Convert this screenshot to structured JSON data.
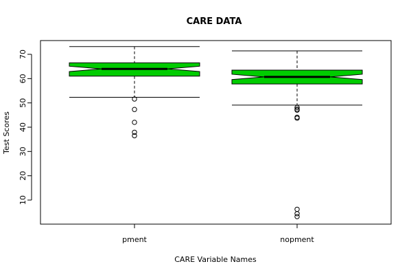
{
  "chart_data": {
    "type": "boxplot",
    "title": "CARE DATA",
    "xlabel": "CARE Variable Names",
    "ylabel": "Test Scores",
    "ylim": [
      0,
      75
    ],
    "yticks": [
      10,
      20,
      30,
      40,
      50,
      60,
      70
    ],
    "notched": true,
    "box_color": "#00cc00",
    "categories": [
      "pment",
      "nopment"
    ],
    "boxes": [
      {
        "name": "pment",
        "whisker_low": 52.3,
        "q1": 61.0,
        "median": 64.0,
        "q3": 66.5,
        "whisker_high": 73.2,
        "notch_low": 62.9,
        "notch_high": 65.1,
        "outliers": [
          51.6,
          47.3,
          42.0,
          37.9,
          36.5
        ]
      },
      {
        "name": "nopment",
        "whisker_low": 49.1,
        "q1": 57.8,
        "median": 60.7,
        "q3": 63.5,
        "whisker_high": 71.4,
        "notch_low": 59.6,
        "notch_high": 61.8,
        "outliers": [
          48.1,
          47.4,
          47.0,
          44.1,
          43.7,
          6.2,
          4.4,
          3.2
        ]
      }
    ]
  }
}
